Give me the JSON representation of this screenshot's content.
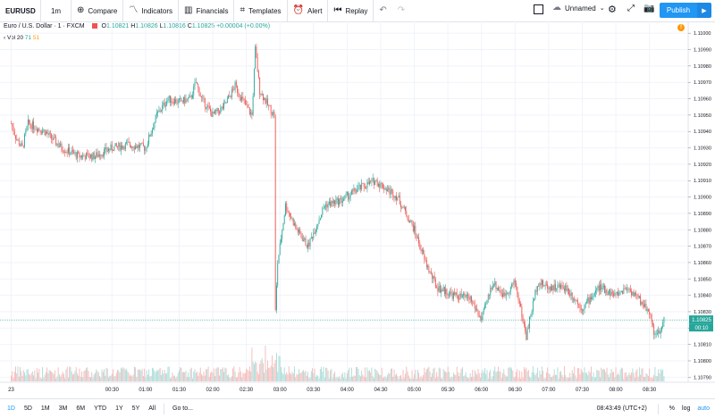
{
  "toolbar": {
    "symbol": "EURUSD",
    "interval": "1m",
    "compare": "Compare",
    "indicators": "Indicators",
    "financials": "Financials",
    "templates": "Templates",
    "alert": "Alert",
    "replay": "Replay",
    "layout_name": "Unnamed",
    "publish": "Publish"
  },
  "legend": {
    "title": "Euro / U.S. Dollar · 1 · FXCM",
    "open_label": "O",
    "open": "1.10821",
    "high_label": "H",
    "high": "1.10826",
    "low_label": "L",
    "low": "1.10816",
    "close_label": "C",
    "close": "1.10825",
    "change": "+0.00004 (+0.00%)"
  },
  "volume_legend": {
    "label": "Vol 20",
    "value1": "71",
    "value2": "51"
  },
  "price_axis": {
    "ticks": [
      "1.11000",
      "1.10990",
      "1.10980",
      "1.10970",
      "1.10960",
      "1.10950",
      "1.10940",
      "1.10930",
      "1.10920",
      "1.10910",
      "1.10900",
      "1.10890",
      "1.10880",
      "1.10870",
      "1.10860",
      "1.10850",
      "1.10840",
      "1.10830",
      "1.10820",
      "1.10810",
      "1.10800",
      "1.10790"
    ],
    "current_price": "1.10825",
    "countdown": "00:10"
  },
  "time_axis": {
    "ticks": [
      "23",
      "00:30",
      "01:00",
      "01:30",
      "02:00",
      "02:30",
      "03:00",
      "03:30",
      "04:00",
      "04:30",
      "05:00",
      "05:30",
      "06:00",
      "06:30",
      "07:00",
      "07:30",
      "08:00",
      "08:30"
    ]
  },
  "bottom": {
    "ranges": [
      "1D",
      "5D",
      "1M",
      "3M",
      "6M",
      "YTD",
      "1Y",
      "5Y",
      "All"
    ],
    "goto": "Go to...",
    "clock": "08:43:49 (UTC+2)",
    "percent": "%",
    "log": "log",
    "auto": "auto"
  },
  "colors": {
    "up": "#26a69a",
    "down": "#ef5350",
    "accent": "#2196f3",
    "price_line": "#26a69a"
  },
  "chart_data": {
    "type": "candlestick",
    "symbol": "EURUSD",
    "ylim": [
      1.10788,
      1.11005
    ],
    "anchors": [
      [
        "23:00",
        1.10945
      ],
      [
        "23:05",
        1.10935
      ],
      [
        "23:10",
        1.1093
      ],
      [
        "23:15",
        1.10945
      ],
      [
        "23:30",
        1.1094
      ],
      [
        "23:45",
        1.1093
      ],
      [
        "00:00",
        1.10925
      ],
      [
        "00:15",
        1.10925
      ],
      [
        "00:30",
        1.1093
      ],
      [
        "00:45",
        1.10932
      ],
      [
        "01:00",
        1.1093
      ],
      [
        "01:10",
        1.1095
      ],
      [
        "01:20",
        1.1096
      ],
      [
        "01:30",
        1.10958
      ],
      [
        "01:40",
        1.1096
      ],
      [
        "01:45",
        1.1097
      ],
      [
        "01:50",
        1.1096
      ],
      [
        "02:00",
        1.1095
      ],
      [
        "02:10",
        1.10955
      ],
      [
        "02:20",
        1.10968
      ],
      [
        "02:30",
        1.10955
      ],
      [
        "02:35",
        1.1095
      ],
      [
        "02:38",
        1.1099
      ],
      [
        "02:42",
        1.10965
      ],
      [
        "02:50",
        1.10955
      ],
      [
        "02:55",
        1.1095
      ],
      [
        "02:56",
        1.1083
      ],
      [
        "02:58",
        1.1086
      ],
      [
        "03:05",
        1.10895
      ],
      [
        "03:15",
        1.1088
      ],
      [
        "03:25",
        1.1087
      ],
      [
        "03:40",
        1.10895
      ],
      [
        "03:55",
        1.10898
      ],
      [
        "04:10",
        1.10905
      ],
      [
        "04:25",
        1.1091
      ],
      [
        "04:35",
        1.10905
      ],
      [
        "04:45",
        1.109
      ],
      [
        "05:00",
        1.1088
      ],
      [
        "05:10",
        1.1086
      ],
      [
        "05:20",
        1.10845
      ],
      [
        "05:35",
        1.1084
      ],
      [
        "05:50",
        1.10838
      ],
      [
        "06:00",
        1.10825
      ],
      [
        "06:10",
        1.10848
      ],
      [
        "06:20",
        1.1084
      ],
      [
        "06:30",
        1.10848
      ],
      [
        "06:40",
        1.10815
      ],
      [
        "06:50",
        1.10848
      ],
      [
        "07:00",
        1.10845
      ],
      [
        "07:15",
        1.10845
      ],
      [
        "07:30",
        1.10832
      ],
      [
        "07:45",
        1.10845
      ],
      [
        "08:00",
        1.1084
      ],
      [
        "08:10",
        1.10845
      ],
      [
        "08:20",
        1.10838
      ],
      [
        "08:30",
        1.1083
      ],
      [
        "08:35",
        1.10815
      ],
      [
        "08:40",
        1.10818
      ],
      [
        "08:43",
        1.10825
      ]
    ]
  }
}
